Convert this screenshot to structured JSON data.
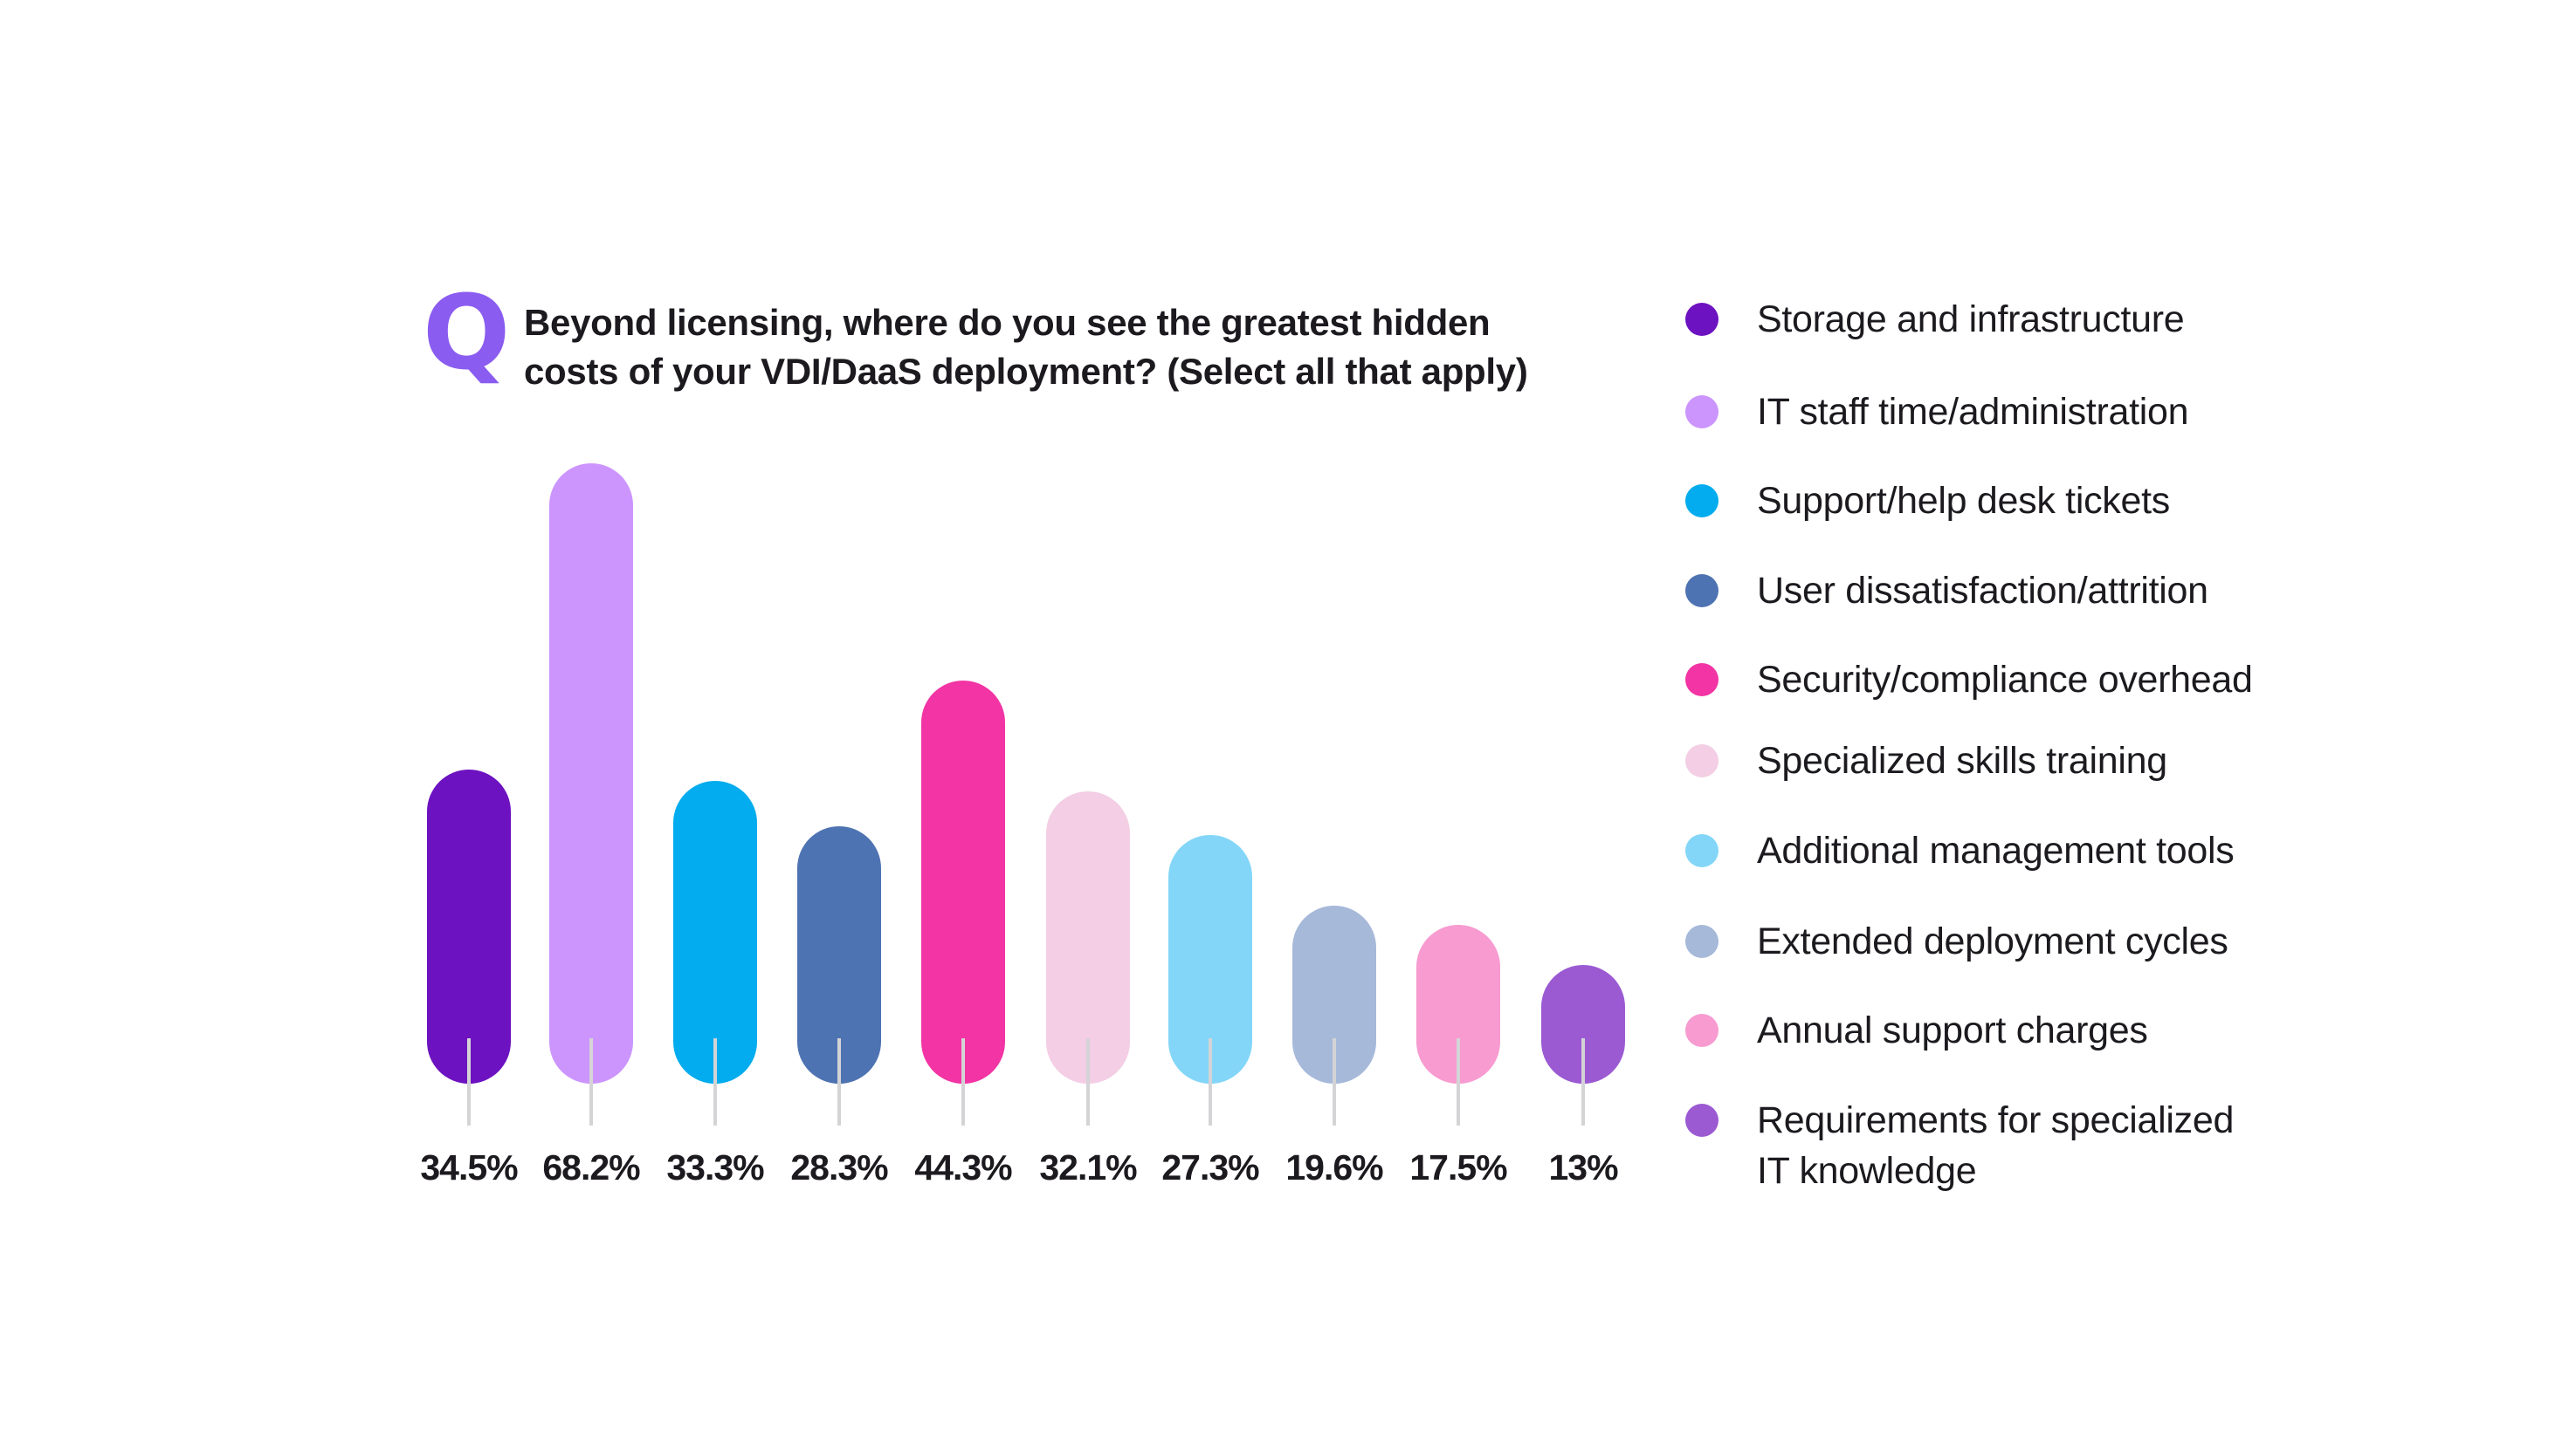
{
  "question": {
    "marker": "Q",
    "title_line1": "Beyond licensing, where do you see the greatest hidden",
    "title_line2": "costs of your VDI/DaaS deployment? (Select all that apply)"
  },
  "colors": {
    "q_marker": "#8a5cf0",
    "tick": "#d4d4d6",
    "text": "#1c1a1f"
  },
  "legend": [
    {
      "label": "Storage and infrastructure",
      "color": "#6d12c0"
    },
    {
      "label": "IT staff time/administration",
      "color": "#cc95fd"
    },
    {
      "label": "Support/help desk tickets",
      "color": "#02acee"
    },
    {
      "label": "User dissatisfaction/attrition",
      "color": "#4e73b2"
    },
    {
      "label": "Security/compliance overhead",
      "color": "#f234a4"
    },
    {
      "label": "Specialized skills training",
      "color": "#f3cee4"
    },
    {
      "label": "Additional management tools",
      "color": "#83d6f7"
    },
    {
      "label": "Extended deployment cycles",
      "color": "#a6b9d9"
    },
    {
      "label": "Annual support charges",
      "color": "#f79bd0"
    },
    {
      "label": "Requirements for specialized",
      "label_line2": "IT knowledge",
      "color": "#9b5ad2"
    }
  ],
  "chart_data": {
    "type": "bar",
    "title": "Beyond licensing, where do you see the greatest hidden costs of your VDI/DaaS deployment? (Select all that apply)",
    "categories": [
      "Storage and infrastructure",
      "IT staff time/administration",
      "Support/help desk tickets",
      "User dissatisfaction/attrition",
      "Security/compliance overhead",
      "Specialized skills training",
      "Additional management tools",
      "Extended deployment cycles",
      "Annual support charges",
      "Requirements for specialized IT knowledge"
    ],
    "values": [
      34.5,
      68.2,
      33.3,
      28.3,
      44.3,
      32.1,
      27.3,
      19.6,
      17.5,
      13
    ],
    "value_labels": [
      "34.5%",
      "68.2%",
      "33.3%",
      "28.3%",
      "44.3%",
      "32.1%",
      "27.3%",
      "19.6%",
      "17.5%",
      "13%"
    ],
    "colors": [
      "#6d12c0",
      "#cc95fd",
      "#02acee",
      "#4e73b2",
      "#f234a4",
      "#f3cee4",
      "#83d6f7",
      "#a6b9d9",
      "#f79bd0",
      "#9b5ad2"
    ],
    "xlabel": "",
    "ylabel": "",
    "ylim": [
      0,
      70
    ],
    "grid": false,
    "legend_position": "right",
    "unit": "%"
  }
}
